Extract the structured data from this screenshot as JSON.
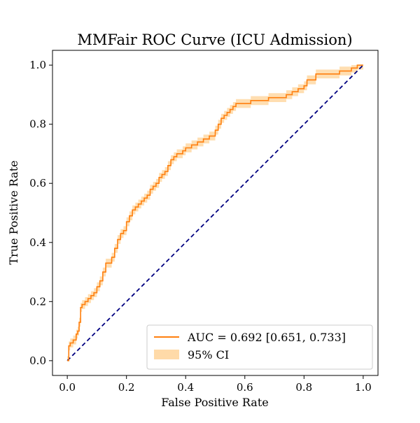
{
  "chart_data": {
    "type": "line",
    "title": "MMFair ROC Curve (ICU Admission)",
    "xlabel": "False Positive Rate",
    "ylabel": "True Positive Rate",
    "xlim": [
      -0.05,
      1.05
    ],
    "ylim": [
      -0.05,
      1.05
    ],
    "x_ticks": [
      "0.0",
      "0.2",
      "0.4",
      "0.6",
      "0.8",
      "1.0"
    ],
    "y_ticks": [
      "0.0",
      "0.2",
      "0.4",
      "0.6",
      "0.8",
      "1.0"
    ],
    "grid": false,
    "legend_position": "lower-right",
    "series": [
      {
        "name": "AUC = 0.692 [0.651, 0.733]",
        "color": "#ff7f0e",
        "x": [
          0.0,
          0.005,
          0.01,
          0.02,
          0.03,
          0.035,
          0.04,
          0.045,
          0.05,
          0.06,
          0.07,
          0.08,
          0.09,
          0.1,
          0.11,
          0.12,
          0.13,
          0.14,
          0.15,
          0.16,
          0.17,
          0.18,
          0.19,
          0.2,
          0.21,
          0.22,
          0.23,
          0.24,
          0.25,
          0.26,
          0.27,
          0.28,
          0.29,
          0.3,
          0.31,
          0.32,
          0.33,
          0.34,
          0.35,
          0.36,
          0.37,
          0.38,
          0.39,
          0.4,
          0.42,
          0.44,
          0.46,
          0.48,
          0.5,
          0.51,
          0.52,
          0.53,
          0.54,
          0.55,
          0.56,
          0.57,
          0.58,
          0.59,
          0.6,
          0.62,
          0.64,
          0.66,
          0.68,
          0.7,
          0.72,
          0.74,
          0.76,
          0.78,
          0.8,
          0.81,
          0.82,
          0.83,
          0.84,
          0.86,
          0.88,
          0.9,
          0.92,
          0.94,
          0.95,
          0.96,
          0.98,
          1.0
        ],
        "y": [
          0.0,
          0.05,
          0.06,
          0.07,
          0.09,
          0.1,
          0.13,
          0.18,
          0.19,
          0.2,
          0.21,
          0.22,
          0.23,
          0.25,
          0.27,
          0.3,
          0.33,
          0.33,
          0.35,
          0.38,
          0.41,
          0.43,
          0.44,
          0.47,
          0.49,
          0.51,
          0.52,
          0.53,
          0.54,
          0.55,
          0.56,
          0.58,
          0.59,
          0.6,
          0.62,
          0.63,
          0.64,
          0.66,
          0.68,
          0.69,
          0.7,
          0.7,
          0.71,
          0.72,
          0.73,
          0.74,
          0.75,
          0.76,
          0.78,
          0.8,
          0.82,
          0.83,
          0.84,
          0.85,
          0.86,
          0.87,
          0.87,
          0.87,
          0.87,
          0.88,
          0.88,
          0.88,
          0.89,
          0.89,
          0.89,
          0.9,
          0.91,
          0.92,
          0.93,
          0.95,
          0.95,
          0.95,
          0.97,
          0.97,
          0.97,
          0.97,
          0.98,
          0.98,
          0.98,
          0.99,
          1.0,
          1.0
        ]
      },
      {
        "name": "",
        "color": "#000080",
        "style": "dashed",
        "x": [
          0.0,
          1.0
        ],
        "y": [
          0.0,
          1.0
        ]
      }
    ],
    "ci_band": {
      "name": "95% CI",
      "color": "#ffdaa8",
      "half_width": 0.015
    }
  }
}
